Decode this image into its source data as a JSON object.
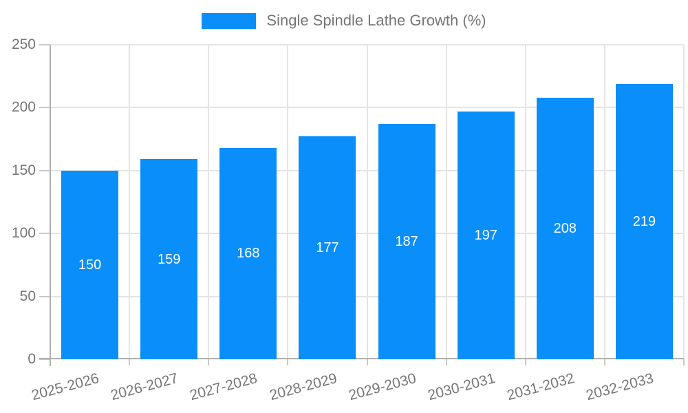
{
  "legend": {
    "label": "Single Spindle Lathe Growth (%)"
  },
  "chart_data": {
    "type": "bar",
    "title": "Single Spindle Lathe Growth (%)",
    "categories": [
      "2025-2026",
      "2026-2027",
      "2027-2028",
      "2028-2029",
      "2029-2030",
      "2030-2031",
      "2031-2032",
      "2032-2033"
    ],
    "values": [
      150,
      159,
      168,
      177,
      187,
      197,
      208,
      219
    ],
    "ylim": [
      0,
      250
    ],
    "yticks": [
      0,
      50,
      100,
      150,
      200,
      250
    ],
    "xlabel": "",
    "ylabel": "",
    "grid": "on",
    "legend_position": "top-center",
    "value_labels": "inside-center",
    "xtick_rotation_deg": -15
  },
  "colors": {
    "bar": "#0a8ef9",
    "grid": "#e4e4e4",
    "axis": "#b0b0b0",
    "tick": "#c9c9c9",
    "text": "#757575",
    "value_label": "#ffffff",
    "background": "#ffffff"
  }
}
